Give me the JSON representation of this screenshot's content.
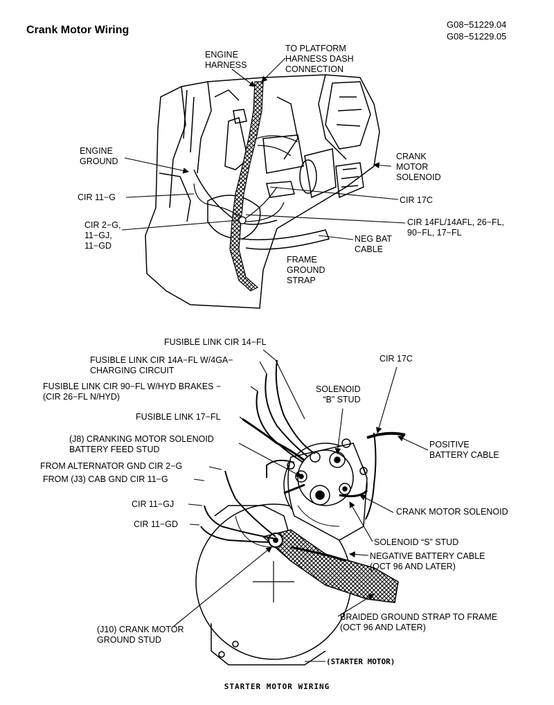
{
  "title": "Crank Motor Wiring",
  "doc_ids": [
    "G08−51229.04",
    "G08−51229.05"
  ],
  "top_diagram": {
    "labels": {
      "engine_harness": [
        "ENGINE",
        "HARNESS"
      ],
      "to_platform": [
        "TO PLATFORM",
        "HARNESS DASH",
        "CONNECTION"
      ],
      "engine_ground": [
        "ENGINE",
        "GROUND"
      ],
      "crank_motor_solenoid": [
        "CRANK",
        "MOTOR",
        "SOLENOID"
      ],
      "cir_11g": "CIR 11−G",
      "cir_17c": "CIR 17C",
      "cir_14fl": [
        "CIR 14FL/14AFL, 26−FL,",
        "90−FL, 17−FL"
      ],
      "cir_2g": [
        "CIR 2−G,",
        "11−GJ,",
        "11−GD"
      ],
      "neg_bat_cable": [
        "NEG BAT",
        "CABLE"
      ],
      "frame_ground_strap": [
        "FRAME",
        "GROUND",
        "STRAP"
      ]
    }
  },
  "bottom_diagram": {
    "labels": {
      "fusible_14fl": "FUSIBLE LINK CIR 14−FL",
      "fusible_14afl": [
        "FUSIBLE LINK CIR 14A−FL W/4GA−",
        "CHARGING CIRCUIT"
      ],
      "fusible_90fl": [
        "FUSIBLE LINK CIR 90−FL W/HYD BRAKES −",
        "(CIR 26−FL N/HYD)"
      ],
      "fusible_17fl": "FUSIBLE LINK 17−FL",
      "j8": [
        "(J8) CRANKING MOTOR SOLENOID",
        "BATTERY FEED STUD"
      ],
      "alt_gnd": "FROM ALTERNATOR GND CIR 2−G",
      "cab_gnd": "FROM (J3) CAB GND CIR 11−G",
      "cir_11gj": "CIR 11−GJ",
      "cir_11gd": "CIR 11−GD",
      "cir_17c": "CIR 17C",
      "solenoid_b": [
        "SOLENOID",
        "“B” STUD"
      ],
      "positive_battery": [
        "POSITIVE",
        "BATTERY CABLE"
      ],
      "crank_motor_solenoid": "CRANK MOTOR SOLENOID",
      "solenoid_s": "SOLENOID “S” STUD",
      "neg_battery": [
        "NEGATIVE BATTERY CABLE",
        "(OCT 96 AND LATER)"
      ],
      "braided": [
        "BRAIDED GROUND STRAP TO FRAME",
        "(OCT 96 AND LATER)"
      ],
      "j10": [
        "(J10) CRANK MOTOR",
        "GROUND STUD"
      ],
      "starter_motor": "(STARTER MOTOR)"
    }
  },
  "caption": "STARTER MOTOR WIRING"
}
